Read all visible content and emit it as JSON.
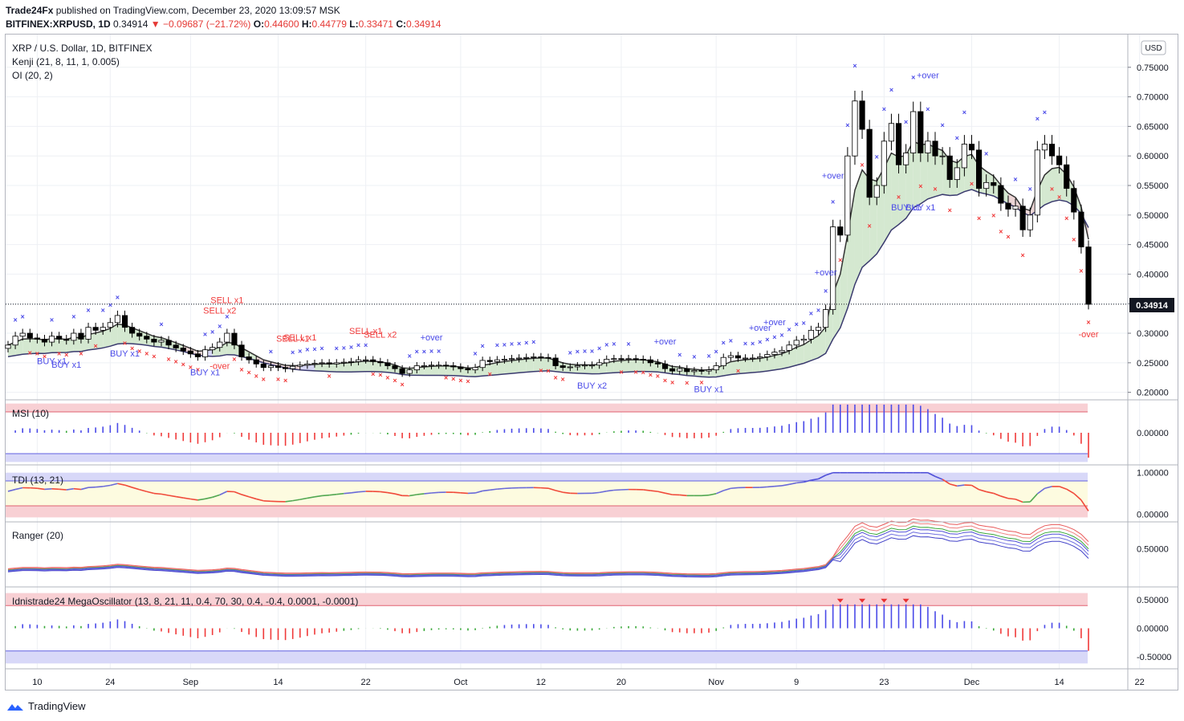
{
  "header": {
    "publisher": "Trade24Fx",
    "published_text": "published on TradingView.com, December 23, 2020 13:09:57 MSK",
    "symbol": "BITFINEX:XRPUSD, 1D",
    "last": "0.34914",
    "arrow": "▼",
    "change": "−0.09687 (−21.72%)",
    "o_label": "O:",
    "o": "0.44600",
    "h_label": "H:",
    "h": "0.44779",
    "l_label": "L:",
    "l": "0.33471",
    "c_label": "C:",
    "c": "0.34914"
  },
  "legend": {
    "title": "XRP / U.S. Dollar, 1D, BITFINEX",
    "kenji": "Kenji (21, 8, 11, 1, 0.005)",
    "oi": "OI (20, 2)",
    "msi": "MSI (10)",
    "tdi": "TDI (13, 21)",
    "ranger": "Ranger (20)",
    "mega": "Idnistrade24 MegaOscillator (13, 8, 21, 11, 0.4, 70, 30, 0.4, -0.4, 0.0001, -0.0001)"
  },
  "currency_badge": "USD",
  "price_label": "0.34914",
  "footer": {
    "brand": "TradingView"
  },
  "colors": {
    "up_candle": "#ffffff",
    "down_candle": "#000000",
    "bull": "#4a4ae8",
    "bear": "#f03a3a",
    "neutral": "#36a836",
    "band_red": "#f8d0d4",
    "band_blue": "#d8d8f8",
    "band_yellow": "#fdfbe0"
  },
  "annotations": [
    {
      "text": "BUY x1",
      "kind": "buy"
    },
    {
      "text": "BUY x1",
      "kind": "buy"
    },
    {
      "text": "BUY x1",
      "kind": "buy"
    },
    {
      "text": "BUY x1",
      "kind": "buy"
    },
    {
      "text": "SELL x2",
      "kind": "sell"
    },
    {
      "text": "SELL x1",
      "kind": "sell"
    },
    {
      "text": "-over",
      "kind": "sell"
    },
    {
      "text": "SELL x1",
      "kind": "sell"
    },
    {
      "text": "SELL x1",
      "kind": "sell"
    },
    {
      "text": "SELL x1",
      "kind": "sell"
    },
    {
      "text": "SELL x2",
      "kind": "sell"
    },
    {
      "text": "+over",
      "kind": "buy"
    },
    {
      "text": "BUY x2",
      "kind": "buy"
    },
    {
      "text": "+over",
      "kind": "buy"
    },
    {
      "text": "BUY x1",
      "kind": "buy"
    },
    {
      "text": "+over",
      "kind": "buy"
    },
    {
      "text": "+over",
      "kind": "buy"
    },
    {
      "text": "+over",
      "kind": "buy"
    },
    {
      "text": "+over",
      "kind": "buy"
    },
    {
      "text": "BUY x1",
      "kind": "buy"
    },
    {
      "text": "BUY x1",
      "kind": "buy"
    },
    {
      "text": "+over",
      "kind": "buy"
    },
    {
      "text": "-over",
      "kind": "sell"
    }
  ],
  "chart_data": [
    {
      "type": "candlestick",
      "title": "XRP / U.S. Dollar, 1D, BITFINEX",
      "ylim": [
        0.19,
        0.8
      ],
      "y_ticks": [
        "0.20000",
        "0.25000",
        "0.30000",
        "0.35000",
        "0.40000",
        "0.45000",
        "0.50000",
        "0.55000",
        "0.60000",
        "0.65000",
        "0.70000",
        "0.75000"
      ],
      "x_ticks": [
        "10",
        "24",
        "Sep",
        "14",
        "22",
        "Oct",
        "12",
        "20",
        "Nov",
        "9",
        "23",
        "Dec",
        "14",
        "22"
      ],
      "last_price": 0.34914,
      "close": [
        0.28,
        0.295,
        0.3,
        0.292,
        0.29,
        0.285,
        0.295,
        0.29,
        0.288,
        0.3,
        0.29,
        0.31,
        0.305,
        0.31,
        0.318,
        0.33,
        0.31,
        0.3,
        0.295,
        0.29,
        0.285,
        0.288,
        0.28,
        0.275,
        0.27,
        0.265,
        0.26,
        0.272,
        0.276,
        0.285,
        0.3,
        0.28,
        0.26,
        0.255,
        0.248,
        0.242,
        0.245,
        0.242,
        0.24,
        0.244,
        0.246,
        0.248,
        0.249,
        0.25,
        0.248,
        0.25,
        0.251,
        0.252,
        0.255,
        0.255,
        0.252,
        0.25,
        0.245,
        0.24,
        0.232,
        0.238,
        0.245,
        0.245,
        0.246,
        0.246,
        0.245,
        0.243,
        0.24,
        0.238,
        0.242,
        0.254,
        0.252,
        0.255,
        0.256,
        0.257,
        0.258,
        0.259,
        0.26,
        0.259,
        0.258,
        0.245,
        0.242,
        0.243,
        0.245,
        0.246,
        0.246,
        0.25,
        0.256,
        0.257,
        0.256,
        0.257,
        0.256,
        0.255,
        0.25,
        0.248,
        0.24,
        0.236,
        0.24,
        0.235,
        0.237,
        0.236,
        0.238,
        0.245,
        0.259,
        0.262,
        0.258,
        0.258,
        0.258,
        0.26,
        0.264,
        0.268,
        0.271,
        0.28,
        0.288,
        0.29,
        0.305,
        0.31,
        0.34,
        0.48,
        0.466,
        0.6,
        0.693,
        0.645,
        0.53,
        0.55,
        0.625,
        0.655,
        0.585,
        0.605,
        0.675,
        0.605,
        0.625,
        0.6,
        0.6,
        0.56,
        0.58,
        0.62,
        0.61,
        0.545,
        0.555,
        0.55,
        0.52,
        0.51,
        0.515,
        0.475,
        0.5,
        0.61,
        0.62,
        0.6,
        0.585,
        0.545,
        0.505,
        0.446,
        0.349
      ],
      "indicators": [
        "Kenji (21, 8, 11, 1, 0.005)",
        "OI (20, 2)"
      ]
    },
    {
      "type": "bar",
      "title": "MSI (10)",
      "ylim": [
        -0.3,
        0.3
      ],
      "y_ticks": [
        "0.00000"
      ]
    },
    {
      "type": "line",
      "title": "TDI (13, 21)",
      "ylim": [
        -0.15,
        1.15
      ],
      "y_ticks": [
        "0.00000",
        "1.00000"
      ]
    },
    {
      "type": "line",
      "title": "Ranger (20)",
      "ylim": [
        0.0,
        0.85
      ],
      "y_ticks": [
        "0.50000"
      ]
    },
    {
      "type": "bar",
      "title": "Idnistrade24 MegaOscillator (13, 8, 21, 11, 0.4, 70, 30, 0.4, -0.4, 0.0001, -0.0001)",
      "ylim": [
        -0.7,
        0.7
      ],
      "y_ticks": [
        "0.50000",
        "0.00000",
        "-0.50000"
      ]
    }
  ]
}
